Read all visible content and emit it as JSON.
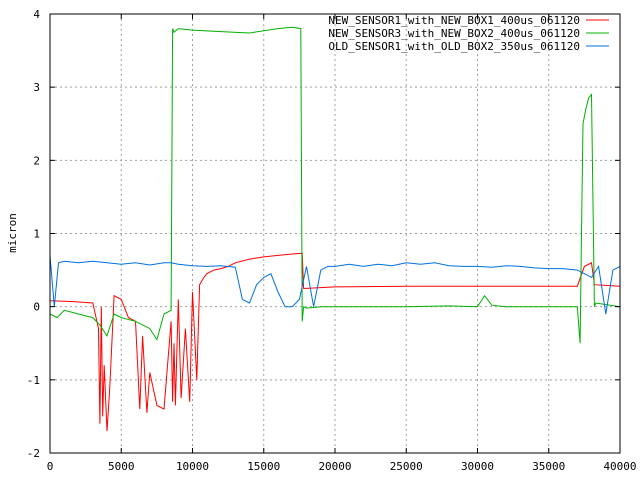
{
  "chart_data": {
    "type": "line",
    "title": "",
    "xlabel": "",
    "ylabel": "micron",
    "xlim": [
      0,
      40000
    ],
    "ylim": [
      -2,
      4
    ],
    "xticks": [
      0,
      5000,
      10000,
      15000,
      20000,
      25000,
      30000,
      35000,
      40000
    ],
    "yticks": [
      -2,
      -1,
      0,
      1,
      2,
      3,
      4
    ],
    "grid": true,
    "legend_position": "top-right",
    "series": [
      {
        "name": "NEW_SENSOR1_with_NEW_BOX1_400us_061120",
        "color": "#ff0000",
        "x": [
          0,
          1500,
          3000,
          3400,
          3500,
          3600,
          3700,
          3800,
          4000,
          4200,
          4500,
          5000,
          5500,
          6000,
          6300,
          6500,
          6800,
          7000,
          7500,
          8000,
          8500,
          8600,
          8700,
          8800,
          9000,
          9200,
          9500,
          9800,
          10000,
          10300,
          10500,
          10800,
          11000,
          11500,
          12000,
          12500,
          13000,
          14000,
          15000,
          16000,
          17000,
          17700,
          17800,
          18000,
          20000,
          25000,
          30000,
          35000,
          37000,
          37500,
          38000,
          38200,
          40000
        ],
        "y": [
          0.08,
          0.07,
          0.05,
          -0.3,
          -1.6,
          0.0,
          -1.5,
          -0.8,
          -1.7,
          -1.1,
          0.15,
          0.1,
          -0.15,
          -0.2,
          -1.4,
          -0.4,
          -1.45,
          -0.9,
          -1.35,
          -1.4,
          -0.2,
          -1.3,
          -0.5,
          -1.35,
          0.1,
          -1.25,
          -0.3,
          -1.3,
          0.2,
          -1.0,
          0.3,
          0.4,
          0.45,
          0.5,
          0.52,
          0.55,
          0.6,
          0.65,
          0.68,
          0.7,
          0.72,
          0.73,
          0.25,
          0.25,
          0.27,
          0.28,
          0.28,
          0.28,
          0.28,
          0.55,
          0.6,
          0.3,
          0.28
        ]
      },
      {
        "name": "NEW_SENSOR3_with_NEW_BOX2_400us_061120",
        "color": "#00b000",
        "x": [
          0,
          500,
          1000,
          2000,
          3000,
          3500,
          4000,
          4500,
          5000,
          6000,
          7000,
          7500,
          8000,
          8500,
          8600,
          8700,
          9000,
          10000,
          12000,
          14000,
          16000,
          17000,
          17600,
          17700,
          17800,
          18000,
          19000,
          20000,
          22000,
          25000,
          28000,
          30000,
          30500,
          31000,
          32000,
          35000,
          37000,
          37200,
          37300,
          37400,
          37600,
          37800,
          38000,
          38200,
          38300,
          40000
        ],
        "y": [
          -0.1,
          -0.15,
          -0.05,
          -0.1,
          -0.15,
          -0.25,
          -0.4,
          -0.1,
          -0.15,
          -0.2,
          -0.3,
          -0.45,
          -0.1,
          -0.05,
          3.8,
          3.75,
          3.8,
          3.78,
          3.76,
          3.74,
          3.8,
          3.82,
          3.8,
          -0.2,
          0.0,
          -0.02,
          0.0,
          0.0,
          0.0,
          0.0,
          0.01,
          0.0,
          0.15,
          0.02,
          0.0,
          0.0,
          0.0,
          -0.5,
          1.0,
          2.5,
          2.7,
          2.85,
          2.9,
          0.0,
          0.05,
          0.0
        ]
      },
      {
        "name": "OLD_SENSOR1_with_OLD_BOX2_350us_061120",
        "color": "#0070e0",
        "x": [
          0,
          300,
          600,
          1000,
          2000,
          3000,
          4000,
          5000,
          6000,
          7000,
          8000,
          8500,
          9000,
          10000,
          11000,
          12000,
          13000,
          13500,
          14000,
          14500,
          15000,
          15500,
          16000,
          16500,
          17000,
          17500,
          18000,
          18500,
          19000,
          19500,
          20000,
          21000,
          22000,
          23000,
          24000,
          25000,
          26000,
          27000,
          28000,
          29000,
          30000,
          31000,
          32000,
          33000,
          34000,
          35000,
          36000,
          37000,
          37500,
          38000,
          38500,
          39000,
          39500,
          40000
        ],
        "y": [
          0.7,
          0.0,
          0.6,
          0.62,
          0.6,
          0.62,
          0.6,
          0.58,
          0.6,
          0.57,
          0.6,
          0.6,
          0.58,
          0.56,
          0.55,
          0.56,
          0.54,
          0.1,
          0.05,
          0.3,
          0.4,
          0.45,
          0.2,
          0.0,
          0.0,
          0.1,
          0.55,
          0.0,
          0.5,
          0.55,
          0.55,
          0.58,
          0.55,
          0.58,
          0.56,
          0.6,
          0.58,
          0.6,
          0.56,
          0.55,
          0.55,
          0.54,
          0.56,
          0.55,
          0.53,
          0.52,
          0.52,
          0.5,
          0.45,
          0.4,
          0.55,
          -0.1,
          0.5,
          0.55
        ]
      }
    ]
  }
}
